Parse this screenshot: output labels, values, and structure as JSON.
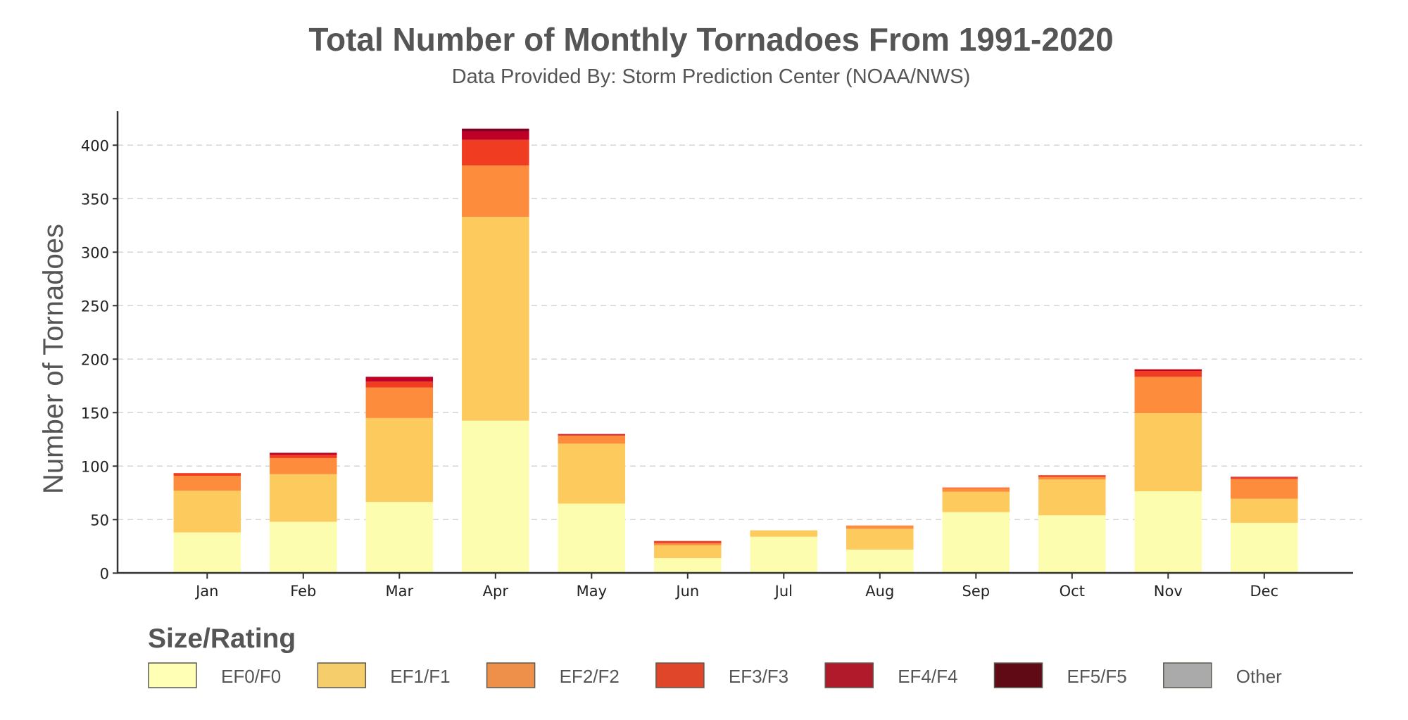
{
  "chart_data": {
    "type": "bar",
    "stacked": true,
    "title": "Total Number of Monthly Tornadoes From 1991-2020",
    "subtitle": "Data Provided By: Storm Prediction Center (NOAA/NWS)",
    "xlabel": "",
    "ylabel": "Number of Tornadoes",
    "ylim": [
      0,
      430
    ],
    "yticks": [
      0,
      50,
      100,
      150,
      200,
      250,
      300,
      350,
      400
    ],
    "grid": true,
    "legend_title": "Size/Rating",
    "legend_position": "bottom",
    "categories": [
      "Jan",
      "Feb",
      "Mar",
      "Apr",
      "May",
      "Jun",
      "Jul",
      "Aug",
      "Sep",
      "Oct",
      "Nov",
      "Dec"
    ],
    "series": [
      {
        "name": "EF0/F0",
        "color": "#fdfdaf",
        "legend_color": "#ffffb5",
        "values": [
          38,
          48,
          66.5,
          142.5,
          65,
          14,
          34,
          22,
          57,
          54,
          76.5,
          47
        ]
      },
      {
        "name": "EF1/F1",
        "color": "#fdca5e",
        "legend_color": "#f5cd6b",
        "values": [
          39,
          44.5,
          78.5,
          190.5,
          56,
          12,
          6,
          19.5,
          19,
          33.5,
          73,
          22.5
        ]
      },
      {
        "name": "EF2/F2",
        "color": "#fd8c3c",
        "legend_color": "#ee9049",
        "values": [
          14,
          15,
          28.5,
          48,
          7.5,
          2,
          0,
          3,
          3.5,
          2.5,
          34,
          18.5
        ]
      },
      {
        "name": "EF3/F3",
        "color": "#f03c21",
        "legend_color": "#e0462a",
        "values": [
          2.5,
          3,
          5.5,
          24,
          1,
          2,
          0,
          0,
          0.5,
          1.5,
          5.5,
          1.5
        ]
      },
      {
        "name": "EF4/F4",
        "color": "#bf0026",
        "legend_color": "#b01a2b",
        "values": [
          0,
          2,
          4.5,
          8,
          0.5,
          0,
          0,
          0,
          0,
          0,
          1.5,
          0.5
        ]
      },
      {
        "name": "EF5/F5",
        "color": "#7e0020",
        "legend_color": "#600a15",
        "values": [
          0,
          0,
          0,
          2.5,
          0,
          0,
          0,
          0,
          0,
          0,
          0,
          0
        ]
      },
      {
        "name": "Other",
        "color": "#aaaaaa",
        "legend_color": "#aaaaaa",
        "values": [
          0,
          0,
          0,
          0,
          0,
          0,
          0,
          0,
          0,
          0,
          0,
          0
        ]
      }
    ]
  }
}
